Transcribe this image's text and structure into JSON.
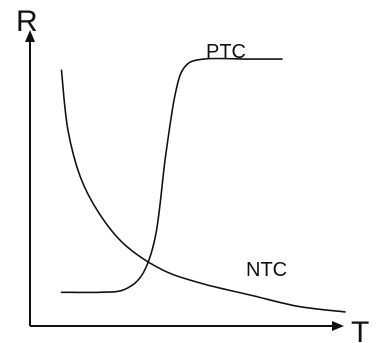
{
  "chart_data": {
    "type": "line",
    "xlabel": "T",
    "ylabel": "R",
    "axis_ticks": false,
    "grid": false,
    "legend": "none",
    "series": [
      {
        "name": "NTC",
        "shape": "decreasing curve (resistance falls as temperature rises)",
        "x": [
          0.1,
          0.12,
          0.16,
          0.22,
          0.3,
          0.42,
          0.55,
          0.7,
          0.85,
          1.0
        ],
        "y": [
          0.91,
          0.7,
          0.53,
          0.4,
          0.29,
          0.2,
          0.15,
          0.11,
          0.07,
          0.05
        ]
      },
      {
        "name": "PTC",
        "shape": "step increase (low resistance, sharp rise, plateau)",
        "x": [
          0.1,
          0.22,
          0.3,
          0.36,
          0.4,
          0.43,
          0.46,
          0.49,
          0.55,
          0.7,
          0.8
        ],
        "y": [
          0.12,
          0.12,
          0.13,
          0.19,
          0.33,
          0.6,
          0.82,
          0.92,
          0.95,
          0.95,
          0.95
        ]
      }
    ],
    "colors": {
      "line": "#111111",
      "background": "#ffffff"
    }
  }
}
